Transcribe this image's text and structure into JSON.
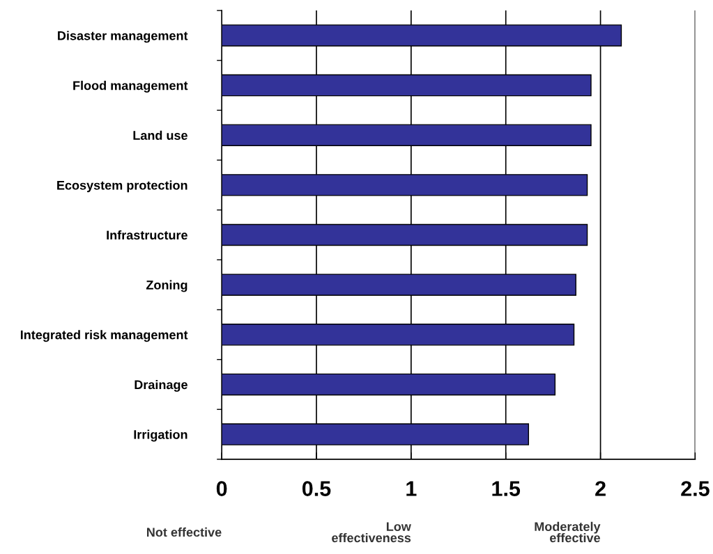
{
  "chart_data": {
    "type": "bar",
    "orientation": "horizontal",
    "categories": [
      "Disaster management",
      "Flood management",
      "Land use",
      "Ecosystem protection",
      "Infrastructure",
      "Zoning",
      "Integrated risk management",
      "Drainage",
      "Irrigation"
    ],
    "values": [
      2.11,
      1.95,
      1.95,
      1.93,
      1.93,
      1.87,
      1.86,
      1.76,
      1.62
    ],
    "color": "#333399",
    "xlim": [
      0,
      2.5
    ],
    "xticks": [
      0,
      0.5,
      1,
      1.5,
      2,
      2.5
    ],
    "grid": "x",
    "annotations": [
      "Not effective",
      "Low\neffectiveness",
      "Moderately\neffective"
    ]
  }
}
